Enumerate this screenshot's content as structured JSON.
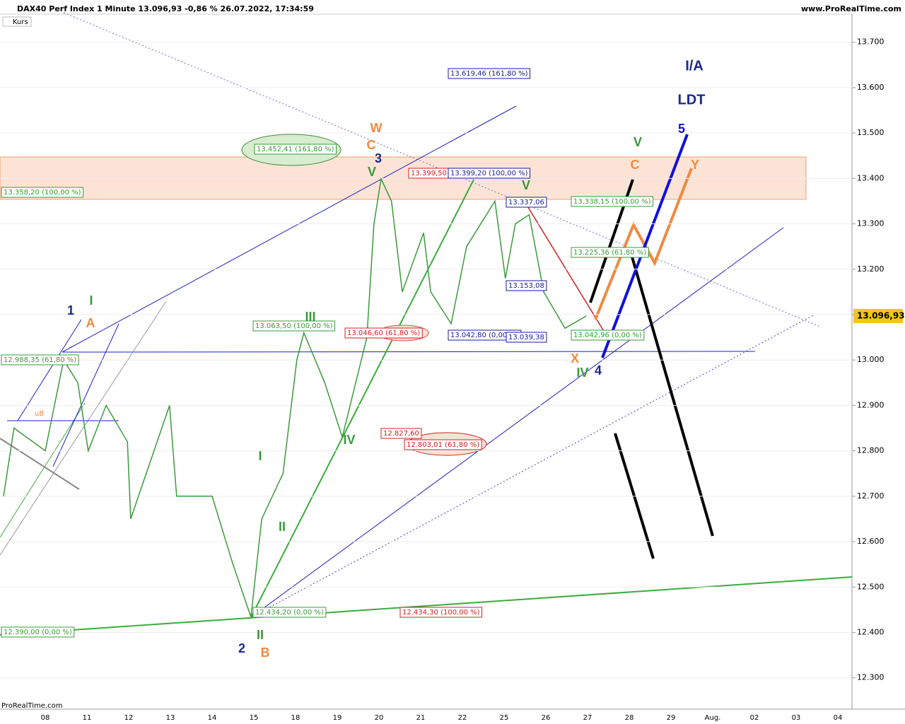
{
  "chart_data": {
    "type": "line",
    "title": "DAX40 Perf Index 1 Minute 13.096,93 -0,86 % 26.07.2022, 17:34:59",
    "source": "www.ProRealTime.com",
    "footer": "ProRealTime.com",
    "last_price_label": "13.096,93",
    "categories": [
      "08",
      "11",
      "12",
      "13",
      "14",
      "15",
      "18",
      "19",
      "20",
      "21",
      "22",
      "25",
      "26",
      "27",
      "28",
      "29",
      "Aug.",
      "02",
      "03",
      "04"
    ],
    "series": [
      {
        "name": "Kurs",
        "color": "#3c9a3c",
        "x": [
          -1.0,
          -0.75,
          0,
          0.44,
          0.78,
          1.03,
          1.46,
          1.97,
          2.05,
          2.98,
          3.15,
          4.0,
          4.5,
          4.93,
          5.19,
          5.7,
          6.03,
          6.2,
          6.7,
          7.12,
          7.71,
          7.88,
          8.05,
          8.3,
          8.56,
          9.07,
          9.24,
          9.73,
          10.1,
          10.78,
          11.03,
          11.27,
          11.6,
          11.95,
          12.46,
          12.97
        ],
        "values": [
          12700,
          12850,
          12800,
          13000,
          12950,
          12800,
          12900,
          12820,
          12650,
          12900,
          12700,
          12700,
          12550,
          12434,
          12650,
          12750,
          13000,
          13060,
          12950,
          12830,
          13050,
          13300,
          13399,
          13350,
          13150,
          13280,
          13150,
          13080,
          13250,
          13350,
          13180,
          13300,
          13320,
          13150,
          13070,
          13097
        ]
      }
    ],
    "ylim": [
      12231,
      13793
    ],
    "yticks": [
      {
        "value": 12300,
        "label": "12.300"
      },
      {
        "value": 12400,
        "label": "12.400"
      },
      {
        "value": 12500,
        "label": "12.500"
      },
      {
        "value": 12600,
        "label": "12.600"
      },
      {
        "value": 12700,
        "label": "12.700"
      },
      {
        "value": 12800,
        "label": "12.800"
      },
      {
        "value": 12900,
        "label": "12.900"
      },
      {
        "value": 13000,
        "label": "13.000"
      },
      {
        "value": 13100,
        "label": "13.100"
      },
      {
        "value": 13200,
        "label": "13.200"
      },
      {
        "value": 13300,
        "label": "13.300"
      },
      {
        "value": 13400,
        "label": "13.400"
      },
      {
        "value": 13500,
        "label": "13.500"
      },
      {
        "value": 13600,
        "label": "13.600"
      },
      {
        "value": 13700,
        "label": "13.700"
      }
    ],
    "annotations": [
      "13.619,46 (161,80 %)",
      "13.452,41 (161,80 %)",
      "13.399,50",
      "13.399,20 (100,00 %)",
      "13.358,20 (100,00 %)",
      "13.337,06",
      "13.338,15 (100,00 %)",
      "13.225,36 (61,80 %)",
      "13.153,08",
      "13.063,50 (100,00 %)",
      "13.046,60 (61,80 %)",
      "13.042,80 (0,00 %)",
      "13.039,38",
      "13.042,96 (0,00 %)",
      "12.988,35 (61,80 %)",
      "12.827,60",
      "12.803,01 (61,80 %)",
      "12.434,20 (0,00 %)",
      "12.434,30 (100,00 %)",
      "12.390,00 (0,00 %)",
      "uB"
    ],
    "wave_labels": [
      "1",
      "I",
      "A",
      "2",
      "II",
      "B",
      "3",
      "V",
      "C",
      "W",
      "III",
      "IV",
      "I",
      "II",
      "V",
      "X",
      "IV",
      "4",
      "5",
      "V",
      "C",
      "Y",
      "I/A",
      "LDT"
    ]
  }
}
